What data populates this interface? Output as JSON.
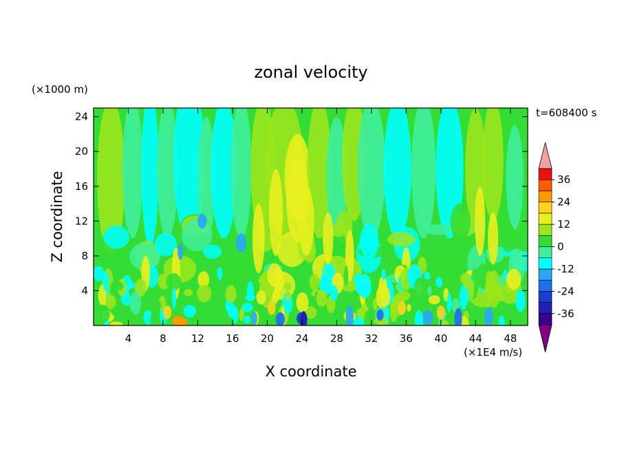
{
  "chart_data": {
    "type": "heatmap",
    "title": "zonal velocity",
    "xlabel": "X coordinate",
    "ylabel": "Z coordinate",
    "y_unit": "(×1000 m)",
    "x_unit": "(×1E4 m/s)",
    "time_label": "t=608400 s",
    "xlim": [
      0,
      50
    ],
    "ylim": [
      0,
      25
    ],
    "xticks": [
      4,
      8,
      12,
      16,
      20,
      24,
      28,
      32,
      36,
      40,
      44,
      48
    ],
    "yticks": [
      4,
      8,
      12,
      16,
      20,
      24
    ],
    "colorbar": {
      "ticks": [
        36,
        24,
        12,
        0,
        -12,
        -24,
        -36
      ],
      "levels": [
        -42,
        -36,
        -30,
        -24,
        -18,
        -12,
        -6,
        0,
        6,
        12,
        18,
        24,
        30,
        36,
        42
      ],
      "colors": [
        "#800080",
        "#3a0090",
        "#2020b0",
        "#1a3ad0",
        "#1e6ff0",
        "#2aa8f5",
        "#00ffff",
        "#40ee9a",
        "#33dd33",
        "#9be61c",
        "#e8f01e",
        "#ffd21e",
        "#ff9a00",
        "#ff5a00",
        "#ee1010",
        "#f4a0a0"
      ]
    },
    "field_description": "Zonal velocity contours: mostly green (near 0) and cyan (slightly negative) in the upper domain; yellow (positive, ~12) streaks concentrated between x≈20 and x≈30 at mid-heights; small blue/navy negative cells near the bottom at x≈18-42; orange cell near x≈10 at the bottom."
  }
}
